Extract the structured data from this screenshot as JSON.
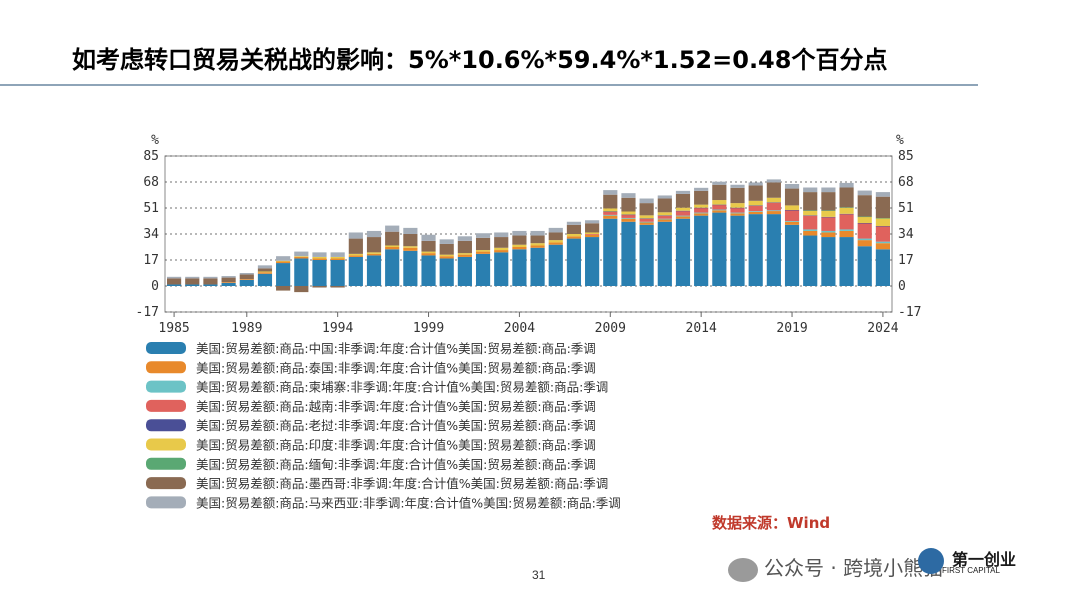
{
  "slide": {
    "title": "如考虑转口贸易关税战的影响：5%*10.6%*59.4%*1.52=0.48个百分点",
    "source": "数据来源：Wind",
    "page_number": "31",
    "watermark": "公众号 · 跨境小熊猫",
    "logo_cn": "第一创业",
    "logo_en": "FIRST CAPITAL"
  },
  "chart_data": {
    "type": "bar",
    "stacked": true,
    "unit_label": "%",
    "years": [
      1985,
      1986,
      1987,
      1988,
      1989,
      1990,
      1991,
      1992,
      1993,
      1994,
      1995,
      1996,
      1997,
      1998,
      1999,
      2000,
      2001,
      2002,
      2003,
      2004,
      2005,
      2006,
      2007,
      2008,
      2009,
      2010,
      2011,
      2012,
      2013,
      2014,
      2015,
      2016,
      2017,
      2018,
      2019,
      2020,
      2021,
      2022,
      2023,
      2024
    ],
    "x_tick_labels": [
      "1985",
      "1989",
      "1994",
      "1999",
      "2004",
      "2009",
      "2014",
      "2019",
      "2024"
    ],
    "x_tick_years": [
      1985,
      1989,
      1994,
      1999,
      2004,
      2009,
      2014,
      2019,
      2024
    ],
    "y_ticks": [
      85,
      68,
      51,
      34,
      17,
      0,
      -17
    ],
    "ylim": [
      -17,
      85
    ],
    "legend_position": "bottom",
    "series": [
      {
        "name": "美国:贸易差额:商品:中国:非季调:年度:合计值%美国:贸易差额:商品:季调",
        "color": "#2a7fb0",
        "values": [
          1,
          1,
          1,
          2,
          4,
          8,
          15,
          18,
          17,
          17,
          19,
          20,
          24,
          23,
          20,
          18,
          19,
          21,
          22,
          24,
          25,
          27,
          31,
          32,
          44,
          42,
          40,
          42,
          44,
          46,
          48,
          46,
          47,
          47,
          40,
          33,
          32,
          32,
          26,
          24
        ]
      },
      {
        "name": "美国:贸易差额:商品:泰国:非季调:年度:合计值%美国:贸易差额:商品:季调",
        "color": "#e8892b",
        "values": [
          0,
          0,
          0,
          0.5,
          0.5,
          1,
          1,
          1,
          1,
          1,
          1,
          1,
          1.5,
          2,
          1.5,
          1.5,
          1.5,
          1.5,
          1.5,
          1.5,
          1.5,
          1.5,
          1.5,
          1.5,
          2,
          2,
          1.5,
          1.5,
          1.5,
          1.5,
          1.5,
          1.5,
          1.5,
          2,
          2,
          3,
          3,
          4,
          4,
          4
        ]
      },
      {
        "name": "美国:贸易差额:商品:柬埔寨:非季调:年度:合计值%美国:贸易差额:商品:季调",
        "color": "#6cc3c6",
        "values": [
          0,
          0,
          0,
          0,
          0,
          0,
          0,
          0,
          0,
          0,
          0,
          0,
          0,
          0,
          0,
          0,
          0,
          0,
          0,
          0,
          0,
          0,
          0,
          0,
          0.5,
          0.5,
          0.5,
          0.5,
          0.5,
          0.5,
          0.5,
          0.5,
          0.5,
          0.5,
          0.5,
          1,
          1,
          1,
          1,
          1
        ]
      },
      {
        "name": "美国:贸易差额:商品:越南:非季调:年度:合计值%美国:贸易差额:商品:季调",
        "color": "#e0625d",
        "values": [
          0,
          0,
          0,
          0,
          0,
          0,
          0,
          0,
          0,
          0,
          0,
          0,
          0,
          0,
          0,
          0,
          0,
          0,
          0,
          0,
          0,
          0,
          0,
          0.5,
          2,
          2,
          2,
          2,
          3,
          3,
          3,
          3,
          3.5,
          5,
          7,
          9,
          9,
          10,
          10,
          10
        ]
      },
      {
        "name": "美国:贸易差额:商品:老挝:非季调:年度:合计值%美国:贸易差额:商品:季调",
        "color": "#4a4f96",
        "values": [
          0,
          0,
          0,
          0,
          0,
          0,
          0,
          0,
          0,
          0,
          0,
          0,
          0,
          0,
          0,
          0,
          0,
          0,
          0,
          0,
          0,
          0,
          0,
          0,
          0.2,
          0.2,
          0.2,
          0.2,
          0.2,
          0.2,
          0.2,
          0.2,
          0.2,
          0.2,
          0.2,
          0.2,
          0.2,
          0.2,
          0.2,
          0.2
        ]
      },
      {
        "name": "美国:贸易差额:商品:印度:非季调:年度:合计值%美国:贸易差额:商品:季调",
        "color": "#e8c94a",
        "values": [
          0,
          0,
          0,
          0,
          0,
          0.5,
          0.5,
          0.5,
          1,
          1,
          1,
          1,
          1,
          1,
          1,
          1,
          1,
          1,
          1.5,
          1.5,
          1.5,
          1.5,
          1.5,
          1,
          2,
          2,
          2,
          2,
          2,
          2,
          3,
          3,
          3,
          3,
          3,
          3,
          4,
          4,
          4,
          5
        ]
      },
      {
        "name": "美国:贸易差额:商品:缅甸:非季调:年度:合计值%美国:贸易差额:商品:季调",
        "color": "#5aa873",
        "values": [
          0,
          0,
          0,
          0,
          0,
          0,
          0,
          0,
          0,
          0,
          0,
          0,
          0,
          0,
          0,
          0,
          0,
          0,
          0,
          0,
          0,
          0,
          0,
          0,
          0,
          0,
          0,
          0,
          0,
          0,
          0,
          0,
          0,
          0,
          0,
          0.2,
          0.2,
          0.2,
          0.2,
          0.2
        ]
      },
      {
        "name": "美国:贸易差额:商品:墨西哥:非季调:年度:合计值%美国:贸易差额:商品:季调",
        "color": "#8a6a52",
        "values": [
          4,
          4,
          4,
          3,
          3,
          2,
          -3,
          -4,
          -1,
          -1,
          10,
          10,
          9,
          8,
          7,
          7,
          8,
          8,
          7,
          6,
          5,
          5,
          6,
          6,
          9,
          9,
          8,
          9,
          9,
          9,
          10,
          10,
          10,
          10,
          11,
          12,
          12,
          13,
          14,
          14
        ]
      },
      {
        "name": "美国:贸易差额:商品:马来西亚:非季调:年度:合计值%美国:贸易差额:商品:季调",
        "color": "#a4adb8",
        "values": [
          1,
          1,
          1,
          1,
          1,
          2,
          3,
          3,
          3,
          3,
          4,
          4,
          4,
          4,
          4,
          3,
          3,
          3,
          3,
          3,
          3,
          3,
          2,
          2,
          3,
          3,
          3,
          2,
          2,
          2,
          2,
          2,
          2,
          2,
          3,
          3,
          3,
          3,
          3,
          3
        ]
      }
    ]
  }
}
